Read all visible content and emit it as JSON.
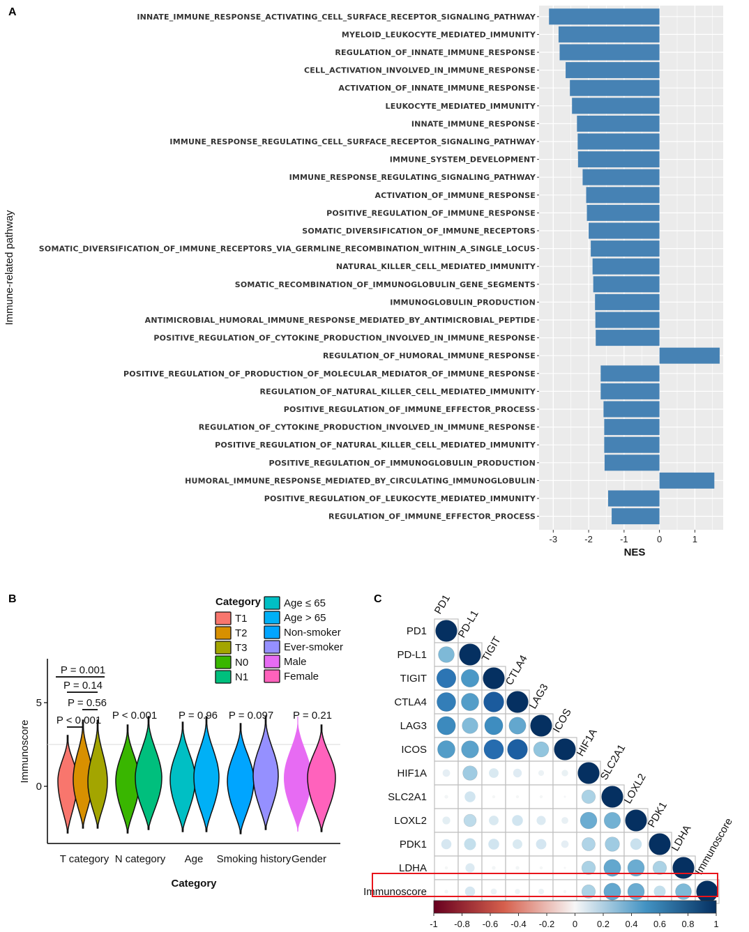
{
  "chart_data": [
    {
      "panel": "A",
      "type": "bar",
      "orientation": "horizontal",
      "ylabel": "Immune-related pathway",
      "xlabel": "NES",
      "xlim": [
        -3.4,
        1.8
      ],
      "xticks": [
        -3,
        -2,
        -1,
        0,
        1
      ],
      "categories": [
        "INNATE_IMMUNE_RESPONSE_ACTIVATING_CELL_SURFACE_RECEPTOR_SIGNALING_PATHWAY",
        "MYELOID_LEUKOCYTE_MEDIATED_IMMUNITY",
        "REGULATION_OF_INNATE_IMMUNE_RESPONSE",
        "CELL_ACTIVATION_INVOLVED_IN_IMMUNE_RESPONSE",
        "ACTIVATION_OF_INNATE_IMMUNE_RESPONSE",
        "LEUKOCYTE_MEDIATED_IMMUNITY",
        "INNATE_IMMUNE_RESPONSE",
        "IMMUNE_RESPONSE_REGULATING_CELL_SURFACE_RECEPTOR_SIGNALING_PATHWAY",
        "IMMUNE_SYSTEM_DEVELOPMENT",
        "IMMUNE_RESPONSE_REGULATING_SIGNALING_PATHWAY",
        "ACTIVATION_OF_IMMUNE_RESPONSE",
        "POSITIVE_REGULATION_OF_IMMUNE_RESPONSE",
        "SOMATIC_DIVERSIFICATION_OF_IMMUNE_RECEPTORS",
        "SOMATIC_DIVERSIFICATION_OF_IMMUNE_RECEPTORS_VIA_GERMLINE_RECOMBINATION_WITHIN_A_SINGLE_LOCUS",
        "NATURAL_KILLER_CELL_MEDIATED_IMMUNITY",
        "SOMATIC_RECOMBINATION_OF_IMMUNOGLOBULIN_GENE_SEGMENTS",
        "IMMUNOGLOBULIN_PRODUCTION",
        "ANTIMICROBIAL_HUMORAL_IMMUNE_RESPONSE_MEDIATED_BY_ANTIMICROBIAL_PEPTIDE",
        "POSITIVE_REGULATION_OF_CYTOKINE_PRODUCTION_INVOLVED_IN_IMMUNE_RESPONSE",
        "REGULATION_OF_HUMORAL_IMMUNE_RESPONSE",
        "POSITIVE_REGULATION_OF_PRODUCTION_OF_MOLECULAR_MEDIATOR_OF_IMMUNE_RESPONSE",
        "REGULATION_OF_NATURAL_KILLER_CELL_MEDIATED_IMMUNITY",
        "POSITIVE_REGULATION_OF_IMMUNE_EFFECTOR_PROCESS",
        "REGULATION_OF_CYTOKINE_PRODUCTION_INVOLVED_IN_IMMUNE_RESPONSE",
        "POSITIVE_REGULATION_OF_NATURAL_KILLER_CELL_MEDIATED_IMMUNITY",
        "POSITIVE_REGULATION_OF_IMMUNOGLOBULIN_PRODUCTION",
        "HUMORAL_IMMUNE_RESPONSE_MEDIATED_BY_CIRCULATING_IMMUNOGLOBULIN",
        "POSITIVE_REGULATION_OF_LEUKOCYTE_MEDIATED_IMMUNITY",
        "REGULATION_OF_IMMUNE_EFFECTOR_PROCESS"
      ],
      "values": [
        -3.12,
        -2.85,
        -2.82,
        -2.65,
        -2.53,
        -2.47,
        -2.33,
        -2.31,
        -2.3,
        -2.17,
        -2.07,
        -2.05,
        -2.0,
        -1.94,
        -1.89,
        -1.87,
        -1.82,
        -1.81,
        -1.8,
        1.7,
        -1.66,
        -1.66,
        -1.58,
        -1.56,
        -1.56,
        -1.55,
        1.55,
        -1.45,
        -1.35
      ],
      "bar_color": "#4682B4"
    },
    {
      "panel": "B",
      "type": "violin",
      "ylabel": "Immunoscore",
      "xlabel": "Category",
      "yticks": [
        0,
        5
      ],
      "groups": [
        {
          "name": "T category",
          "subgroups": [
            "T1",
            "T2",
            "T3"
          ],
          "p_label": "P < 0.001"
        },
        {
          "name": "N category",
          "subgroups": [
            "N0",
            "N1"
          ],
          "p_label": "P < 0.001"
        },
        {
          "name": "Age",
          "subgroups": [
            "Age ≤ 65",
            "Age > 65"
          ],
          "p_label": "P = 0.96"
        },
        {
          "name": "Smoking history",
          "subgroups": [
            "Non-smoker",
            "Ever-smoker"
          ],
          "p_label": "P = 0.097"
        },
        {
          "name": "Gender",
          "subgroups": [
            "Male",
            "Female"
          ],
          "p_label": "P = 0.21"
        }
      ],
      "pairwise_p": [
        "P = 0.001",
        "P = 0.14",
        "P = 0.56",
        "P < 0.001"
      ],
      "legend": {
        "title": "Category",
        "entries": [
          {
            "label": "T1",
            "color": "#F8766D"
          },
          {
            "label": "T2",
            "color": "#D89000"
          },
          {
            "label": "T3",
            "color": "#A3A500"
          },
          {
            "label": "N0",
            "color": "#39B600"
          },
          {
            "label": "N1",
            "color": "#00BF7D"
          },
          {
            "label": "Age ≤ 65",
            "color": "#00BFC4"
          },
          {
            "label": "Age > 65",
            "color": "#00B0F6"
          },
          {
            "label": "Non-smoker",
            "color": "#00A5FF"
          },
          {
            "label": "Ever-smoker",
            "color": "#9590FF"
          },
          {
            "label": "Male",
            "color": "#E76BF3"
          },
          {
            "label": "Female",
            "color": "#FF62BC"
          }
        ]
      }
    },
    {
      "panel": "C",
      "type": "heatmap",
      "style": "lower-triangle correlation circles",
      "variables": [
        "PD1",
        "PD-L1",
        "TIGIT",
        "CTLA4",
        "LAG3",
        "ICOS",
        "HIF1A",
        "SLC2A1",
        "LOXL2",
        "PDK1",
        "LDHA",
        "Immunoscore"
      ],
      "lower_triangle": [
        [
          1
        ],
        [
          0.55,
          1
        ],
        [
          0.8,
          0.68,
          1
        ],
        [
          0.77,
          0.66,
          0.88,
          1
        ],
        [
          0.73,
          0.54,
          0.72,
          0.62,
          1
        ],
        [
          0.66,
          0.64,
          0.83,
          0.87,
          0.5,
          1
        ],
        [
          0.12,
          0.45,
          0.2,
          0.16,
          0.07,
          0.09,
          1
        ],
        [
          0.03,
          0.25,
          0.02,
          0.02,
          0.02,
          0.01,
          0.4,
          1
        ],
        [
          0.13,
          0.33,
          0.2,
          0.25,
          0.18,
          0.1,
          0.6,
          0.58,
          1
        ],
        [
          0.22,
          0.3,
          0.25,
          0.2,
          0.23,
          0.12,
          0.38,
          0.45,
          0.28,
          1
        ],
        [
          0.02,
          0.18,
          0.03,
          0.03,
          0.02,
          0.01,
          0.4,
          0.62,
          0.6,
          0.4,
          1
        ],
        [
          0.03,
          0.22,
          0.08,
          0.06,
          0.07,
          0.02,
          0.4,
          0.62,
          0.6,
          0.3,
          0.55,
          1
        ]
      ],
      "highlight_row": "Immunoscore",
      "colorbar_ticks": [
        "-1",
        "-0.8",
        "-0.6",
        "-0.4",
        "-0.2",
        "0",
        "0.2",
        "0.4",
        "0.6",
        "0.8",
        "1"
      ],
      "colorbar_range": [
        -1,
        1
      ]
    }
  ],
  "panels": {
    "a": "A",
    "b": "B",
    "c": "C"
  }
}
